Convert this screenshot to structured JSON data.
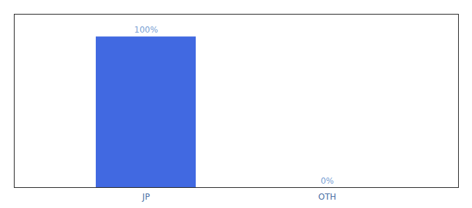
{
  "chart_data": {
    "type": "bar",
    "categories": [
      "JP",
      "OTH"
    ],
    "values": [
      100,
      0
    ],
    "value_labels": [
      "100%",
      "0%"
    ],
    "color": "#4169e1",
    "ylim": [
      0,
      115
    ],
    "data_labels": true,
    "tick_labels": "x",
    "grid": false
  }
}
